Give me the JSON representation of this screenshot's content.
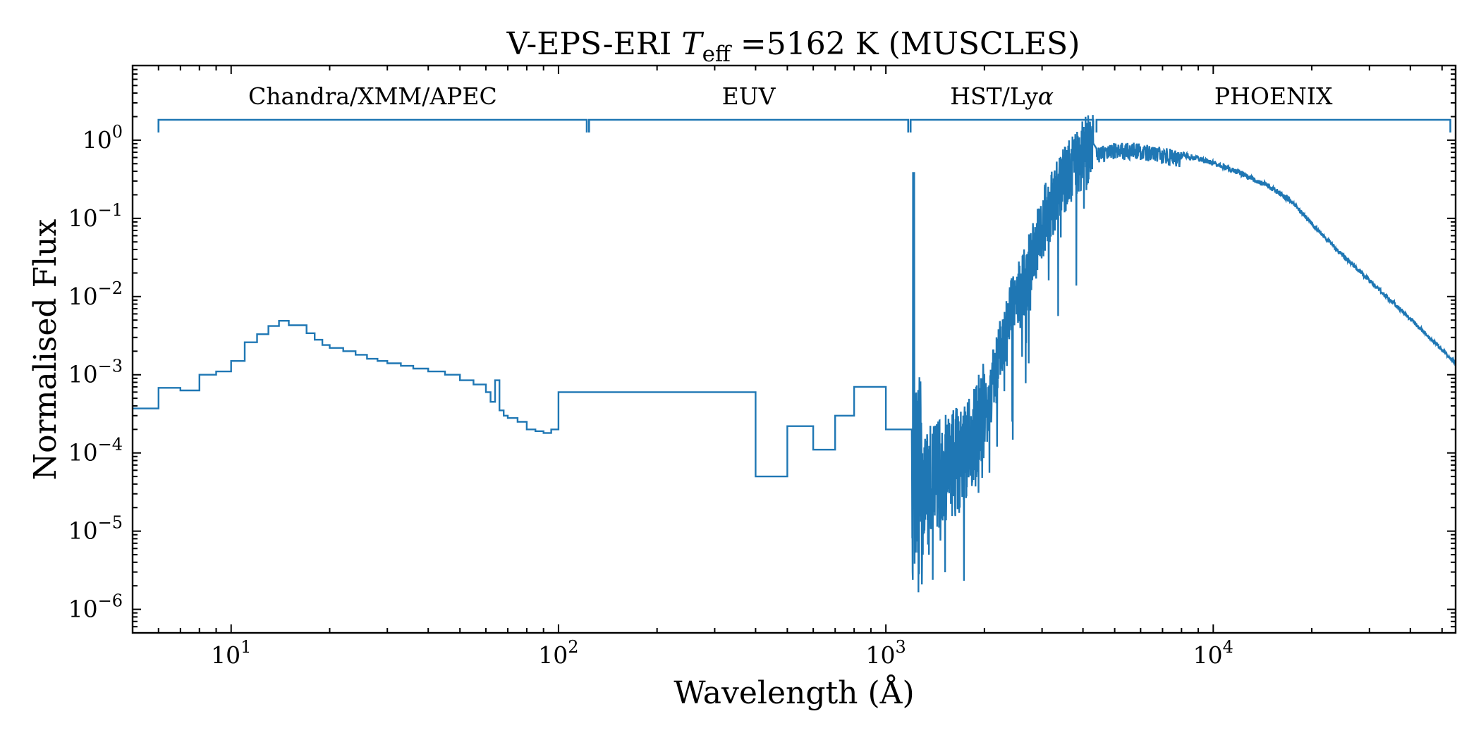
{
  "chart_data": {
    "type": "line",
    "title": {
      "prefix": "V-EPS-ERI ",
      "teff_symbol": "T",
      "teff_subscript": "eff",
      "teff_value": " =5162 K (MUSCLES)"
    },
    "xlabel": "Wavelength (Å)",
    "ylabel": "Normalised Flux",
    "xscale": "log",
    "yscale": "log",
    "xlim": [
      5,
      55000
    ],
    "ylim": [
      5e-07,
      9
    ],
    "x_ticks": [
      {
        "base": "10",
        "exp": "1",
        "value": 10
      },
      {
        "base": "10",
        "exp": "2",
        "value": 100
      },
      {
        "base": "10",
        "exp": "3",
        "value": 1000
      },
      {
        "base": "10",
        "exp": "4",
        "value": 10000
      }
    ],
    "y_ticks": [
      {
        "base": "10",
        "exp": "0",
        "value": 1
      },
      {
        "base": "10",
        "exp": "−1",
        "value": 0.1
      },
      {
        "base": "10",
        "exp": "−2",
        "value": 0.01
      },
      {
        "base": "10",
        "exp": "−3",
        "value": 0.001
      },
      {
        "base": "10",
        "exp": "−4",
        "value": 0.0001
      },
      {
        "base": "10",
        "exp": "−5",
        "value": 1e-05
      },
      {
        "base": "10",
        "exp": "−6",
        "value": 1e-06
      }
    ],
    "regions": [
      {
        "label": "Chandra/XMM/APEC",
        "start": 6,
        "end": 122
      },
      {
        "label": "EUV",
        "start": 124,
        "end": 1170
      },
      {
        "label": "HST/Ly",
        "label_symbol": "α",
        "start": 1190,
        "end": 4300
      },
      {
        "label": "PHOENIX",
        "start": 4400,
        "end": 53000
      }
    ],
    "series": [
      {
        "color": "#1f77b4",
        "step_x": [
          5,
          6,
          7,
          8,
          9,
          10,
          11,
          12,
          13,
          14,
          15,
          16,
          17,
          18,
          19,
          20,
          22,
          24,
          26,
          28,
          30,
          33,
          36,
          40,
          45,
          50,
          55,
          60,
          62,
          64,
          66,
          68,
          70,
          75,
          80,
          85,
          90,
          95,
          100,
          400,
          500,
          600,
          700,
          800,
          1000,
          1200
        ],
        "step_y": [
          0.00037,
          0.00068,
          0.00063,
          0.001,
          0.0011,
          0.0015,
          0.0026,
          0.0033,
          0.0042,
          0.0049,
          0.0043,
          0.0043,
          0.0034,
          0.0028,
          0.0024,
          0.0022,
          0.002,
          0.0018,
          0.0016,
          0.0015,
          0.0014,
          0.0013,
          0.0012,
          0.0011,
          0.001,
          0.00085,
          0.00075,
          0.0006,
          0.00045,
          0.00085,
          0.00035,
          0.0003,
          0.00028,
          0.00025,
          0.0002,
          0.00019,
          0.00018,
          0.0002,
          0.0006,
          5e-05,
          0.00022,
          0.00011,
          0.0003,
          0.0007,
          0.0002,
          0.0002
        ],
        "uv_x": [
          1200,
          1216,
          1230,
          1300,
          1400,
          1500,
          1600,
          1700,
          1800,
          2000,
          2200,
          2400,
          2600,
          2800,
          3000,
          3200,
          3500,
          3800,
          4000,
          4300
        ],
        "uv_y": [
          0.0001,
          0.38,
          2e-05,
          4e-05,
          5e-05,
          6e-05,
          7e-05,
          9e-05,
          0.00012,
          0.0003,
          0.0015,
          0.006,
          0.012,
          0.03,
          0.08,
          0.15,
          0.3,
          0.5,
          0.7,
          0.8
        ],
        "optical_x": [
          4400,
          5000,
          6000,
          7000,
          8000,
          10000,
          12000,
          15000,
          17000,
          20000,
          25000,
          30000,
          40000,
          50000,
          55000
        ],
        "optical_y": [
          0.85,
          0.95,
          0.92,
          0.82,
          0.72,
          0.55,
          0.42,
          0.27,
          0.19,
          0.09,
          0.035,
          0.017,
          0.0055,
          0.0022,
          0.0015
        ]
      }
    ]
  }
}
